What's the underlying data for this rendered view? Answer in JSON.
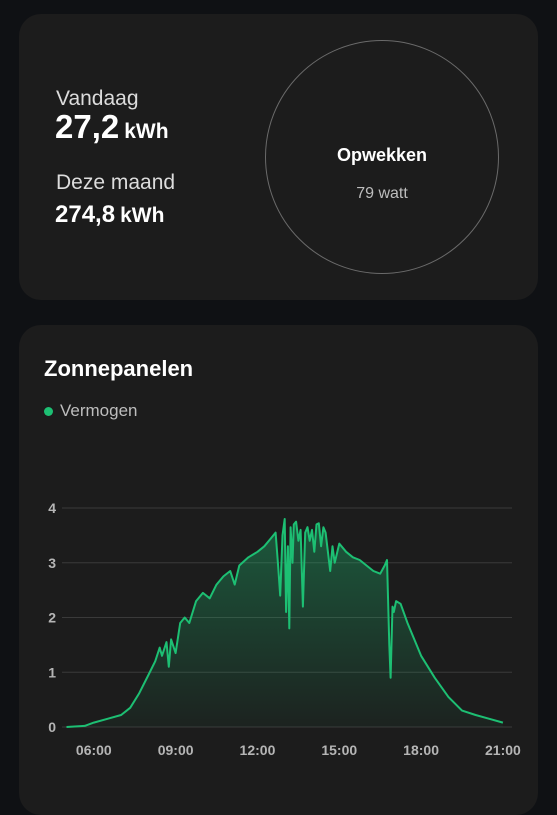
{
  "summary": {
    "today_label": "Vandaag",
    "today_value": "27,2",
    "today_unit": "kWh",
    "month_label": "Deze maand",
    "month_value": "274,8",
    "month_unit": "kWh",
    "power_title": "Opwekken",
    "power_value": "79 watt"
  },
  "chart": {
    "title": "Zonnepanelen",
    "legend_label": "Vermogen",
    "color": "#1dbf73"
  },
  "chart_data": {
    "type": "area",
    "title": "Zonnepanelen",
    "xlabel": "",
    "ylabel": "",
    "xlim": [
      "04:50",
      "21:20"
    ],
    "ylim": [
      0,
      4
    ],
    "y_ticks": [
      0,
      1,
      2,
      3,
      4
    ],
    "x_ticks": [
      "06:00",
      "09:00",
      "12:00",
      "15:00",
      "18:00",
      "21:00"
    ],
    "grid": true,
    "legend": "top-left",
    "series": [
      {
        "name": "Vermogen",
        "color": "#1dbf73",
        "points": [
          [
            "05:00",
            0.0
          ],
          [
            "05:40",
            0.02
          ],
          [
            "06:00",
            0.08
          ],
          [
            "06:30",
            0.15
          ],
          [
            "07:00",
            0.22
          ],
          [
            "07:20",
            0.35
          ],
          [
            "07:40",
            0.62
          ],
          [
            "08:00",
            0.95
          ],
          [
            "08:15",
            1.2
          ],
          [
            "08:25",
            1.45
          ],
          [
            "08:30",
            1.3
          ],
          [
            "08:40",
            1.55
          ],
          [
            "08:45",
            1.1
          ],
          [
            "08:50",
            1.6
          ],
          [
            "09:00",
            1.35
          ],
          [
            "09:10",
            1.9
          ],
          [
            "09:20",
            2.0
          ],
          [
            "09:30",
            1.9
          ],
          [
            "09:45",
            2.3
          ],
          [
            "10:00",
            2.45
          ],
          [
            "10:15",
            2.35
          ],
          [
            "10:30",
            2.6
          ],
          [
            "10:45",
            2.75
          ],
          [
            "11:00",
            2.85
          ],
          [
            "11:10",
            2.6
          ],
          [
            "11:20",
            2.95
          ],
          [
            "11:40",
            3.1
          ],
          [
            "12:00",
            3.2
          ],
          [
            "12:15",
            3.3
          ],
          [
            "12:30",
            3.45
          ],
          [
            "12:40",
            3.55
          ],
          [
            "12:45",
            3.0
          ],
          [
            "12:50",
            2.4
          ],
          [
            "12:55",
            3.5
          ],
          [
            "13:00",
            3.8
          ],
          [
            "13:03",
            2.1
          ],
          [
            "13:07",
            3.3
          ],
          [
            "13:10",
            1.8
          ],
          [
            "13:13",
            3.65
          ],
          [
            "13:17",
            3.0
          ],
          [
            "13:20",
            3.7
          ],
          [
            "13:25",
            3.75
          ],
          [
            "13:30",
            3.4
          ],
          [
            "13:35",
            3.6
          ],
          [
            "13:40",
            2.2
          ],
          [
            "13:45",
            3.55
          ],
          [
            "13:50",
            3.65
          ],
          [
            "13:55",
            3.4
          ],
          [
            "14:00",
            3.6
          ],
          [
            "14:05",
            3.2
          ],
          [
            "14:10",
            3.7
          ],
          [
            "14:15",
            3.72
          ],
          [
            "14:20",
            3.3
          ],
          [
            "14:25",
            3.65
          ],
          [
            "14:30",
            3.55
          ],
          [
            "14:35",
            3.2
          ],
          [
            "14:40",
            2.85
          ],
          [
            "14:45",
            3.3
          ],
          [
            "14:50",
            3.0
          ],
          [
            "15:00",
            3.35
          ],
          [
            "15:15",
            3.2
          ],
          [
            "15:30",
            3.1
          ],
          [
            "15:45",
            3.05
          ],
          [
            "16:00",
            2.95
          ],
          [
            "16:15",
            2.85
          ],
          [
            "16:30",
            2.8
          ],
          [
            "16:40",
            2.95
          ],
          [
            "16:45",
            3.05
          ],
          [
            "16:50",
            1.5
          ],
          [
            "16:53",
            0.9
          ],
          [
            "16:57",
            2.2
          ],
          [
            "17:00",
            2.1
          ],
          [
            "17:05",
            2.3
          ],
          [
            "17:15",
            2.25
          ],
          [
            "17:30",
            1.9
          ],
          [
            "18:00",
            1.3
          ],
          [
            "18:30",
            0.9
          ],
          [
            "19:00",
            0.55
          ],
          [
            "19:30",
            0.3
          ],
          [
            "20:00",
            0.22
          ],
          [
            "20:30",
            0.15
          ],
          [
            "21:00",
            0.08
          ]
        ]
      }
    ]
  }
}
